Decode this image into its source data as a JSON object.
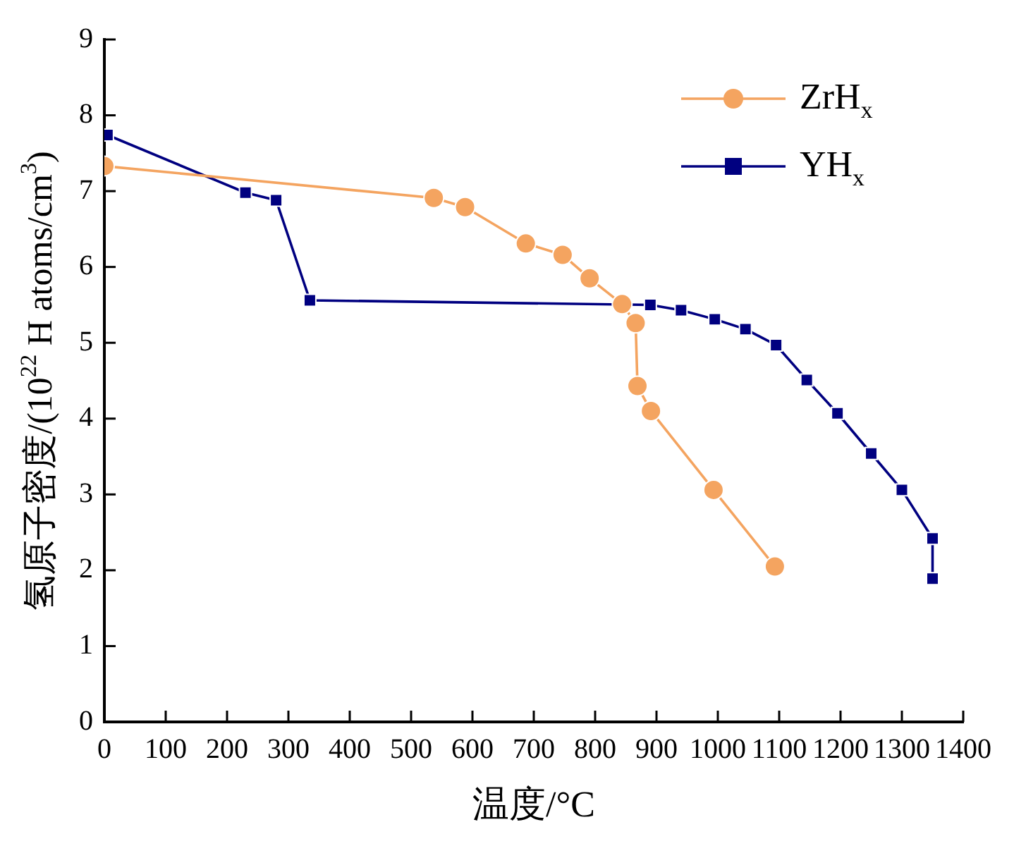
{
  "chart_data": {
    "type": "line",
    "xlabel": "温度/°C",
    "ylabel": "氢原子密度/(10$^{22}$ H atoms/cm$^{3}$)",
    "xlim": [
      0,
      1400
    ],
    "xticks": [
      0,
      100,
      200,
      300,
      400,
      500,
      600,
      700,
      800,
      900,
      1000,
      1100,
      1200,
      1300,
      1400
    ],
    "ylim": [
      0,
      9
    ],
    "yticks": [
      0,
      1,
      2,
      3,
      4,
      5,
      6,
      7,
      8,
      9
    ],
    "legend": "top right",
    "series": [
      {
        "name": "ZrH$_{x}$",
        "color": "#f4a460",
        "marker": "circle",
        "x": [
          0,
          537,
          588,
          687,
          747,
          791,
          844,
          866,
          869,
          891,
          993,
          1093
        ],
        "values": [
          7.33,
          6.91,
          6.79,
          6.31,
          6.16,
          5.85,
          5.51,
          5.26,
          4.43,
          4.1,
          3.06,
          2.05
        ]
      },
      {
        "name": "YH$_{x}$",
        "color": "#000080",
        "marker": "square",
        "x": [
          5,
          230,
          280,
          335,
          890,
          940,
          995,
          1045,
          1095,
          1145,
          1195,
          1250,
          1300,
          1350,
          1350
        ],
        "values": [
          7.74,
          6.98,
          6.88,
          5.56,
          5.5,
          5.43,
          5.31,
          5.18,
          4.97,
          4.51,
          4.07,
          3.54,
          3.06,
          2.42,
          1.89
        ]
      }
    ]
  }
}
